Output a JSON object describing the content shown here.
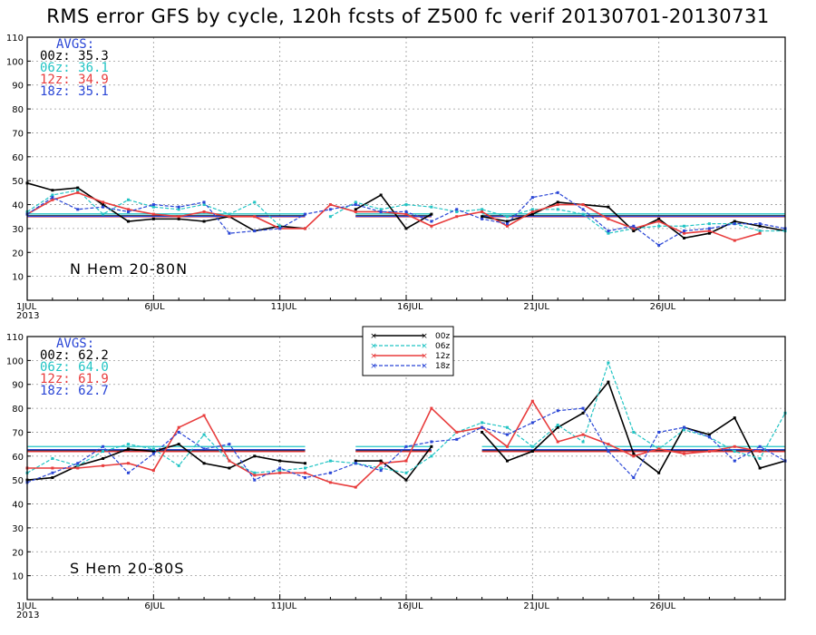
{
  "title": "RMS error GFS by cycle, 120h fcsts of Z500  fc verif 20130701-20130731",
  "colors": {
    "00z": "#000000",
    "06z": "#22c4c4",
    "12z": "#e83c3c",
    "18z": "#2a46d6",
    "avgs_header": "#2a46d6"
  },
  "legend": [
    "00z",
    "06z",
    "12z",
    "18z"
  ],
  "chart_data": [
    {
      "type": "line",
      "region_label": "N Hem 20-80N",
      "x_tick_labels": [
        "1JUL\n2013",
        "6JUL",
        "11JUL",
        "16JUL",
        "21JUL",
        "26JUL"
      ],
      "x_tick_days": [
        1,
        6,
        11,
        16,
        21,
        26
      ],
      "xlim": [
        1,
        31
      ],
      "ylim": [
        0,
        110
      ],
      "y_ticks": [
        10,
        20,
        30,
        40,
        50,
        60,
        70,
        80,
        90,
        100,
        110
      ],
      "grid": true,
      "avgs_header": "AVGS:",
      "avgs": [
        {
          "cycle": "00z",
          "text": "00z: 35.3",
          "value": 35.3
        },
        {
          "cycle": "06z",
          "text": "06z: 36.1",
          "value": 36.1
        },
        {
          "cycle": "12z",
          "text": "12z: 34.9",
          "value": 34.9
        },
        {
          "cycle": "18z",
          "text": "18z: 35.1",
          "value": 35.1
        }
      ],
      "avg_line_segments": [
        [
          1,
          12
        ],
        [
          14,
          17
        ],
        [
          19,
          31
        ]
      ],
      "series": [
        {
          "cycle": "00z",
          "x": [
            1,
            2,
            3,
            4,
            5,
            6,
            7,
            8,
            9,
            10,
            11,
            12,
            null,
            14,
            15,
            16,
            17,
            null,
            19,
            20,
            21,
            22,
            23,
            24,
            25,
            26,
            27,
            28,
            29,
            30,
            31
          ],
          "y": [
            49,
            46,
            47,
            40,
            33,
            34,
            34,
            33,
            35,
            29,
            31,
            30,
            null,
            38,
            44,
            30,
            36,
            null,
            35,
            33,
            36,
            41,
            40,
            39,
            29,
            34,
            26,
            28,
            33,
            31,
            29
          ]
        },
        {
          "cycle": "06z",
          "x": [
            1,
            2,
            3,
            4,
            5,
            6,
            7,
            8,
            9,
            10,
            11,
            null,
            13,
            14,
            15,
            16,
            17,
            18,
            19,
            20,
            21,
            22,
            23,
            24,
            25,
            26,
            27,
            28,
            29,
            30,
            31
          ],
          "y": [
            37,
            44,
            46,
            36,
            42,
            39,
            38,
            40,
            36,
            41,
            31,
            null,
            35,
            41,
            38,
            40,
            39,
            37,
            38,
            35,
            38,
            38,
            36,
            28,
            30,
            31,
            31,
            32,
            32,
            29,
            29
          ]
        },
        {
          "cycle": "12z",
          "x": [
            1,
            2,
            3,
            4,
            5,
            6,
            7,
            8,
            9,
            10,
            11,
            12,
            13,
            14,
            15,
            16,
            17,
            18,
            19,
            20,
            21,
            22,
            23,
            24,
            25,
            26,
            27,
            28,
            29,
            30
          ],
          "y": [
            36,
            42,
            45,
            41,
            38,
            36,
            35,
            37,
            35,
            35,
            30,
            30,
            40,
            37,
            37,
            36,
            31,
            35,
            37,
            31,
            37,
            40,
            40,
            34,
            30,
            33,
            28,
            29,
            25,
            28
          ]
        },
        {
          "cycle": "18z",
          "x": [
            1,
            2,
            3,
            4,
            5,
            6,
            7,
            8,
            9,
            10,
            11,
            12,
            13,
            14,
            15,
            16,
            17,
            18,
            19,
            20,
            21,
            22,
            23,
            24,
            25,
            26,
            27,
            28,
            29,
            30,
            31
          ],
          "y": [
            36,
            43,
            38,
            39,
            37,
            40,
            39,
            41,
            28,
            29,
            30,
            36,
            38,
            40,
            37,
            37,
            33,
            38,
            34,
            32,
            43,
            45,
            38,
            29,
            31,
            23,
            29,
            30,
            32,
            32,
            30
          ]
        }
      ]
    },
    {
      "type": "line",
      "region_label": "S Hem 20-80S",
      "x_tick_labels": [
        "1JUL\n2013",
        "6JUL",
        "11JUL",
        "16JUL",
        "21JUL",
        "26JUL"
      ],
      "x_tick_days": [
        1,
        6,
        11,
        16,
        21,
        26
      ],
      "xlim": [
        1,
        31
      ],
      "ylim": [
        0,
        110
      ],
      "y_ticks": [
        10,
        20,
        30,
        40,
        50,
        60,
        70,
        80,
        90,
        100,
        110
      ],
      "grid": true,
      "avgs_header": "AVGS:",
      "avgs": [
        {
          "cycle": "00z",
          "text": "00z: 62.2",
          "value": 62.2
        },
        {
          "cycle": "06z",
          "text": "06z: 64.0",
          "value": 64.0
        },
        {
          "cycle": "12z",
          "text": "12z: 61.9",
          "value": 61.9
        },
        {
          "cycle": "18z",
          "text": "18z: 62.7",
          "value": 62.7
        }
      ],
      "avg_line_segments": [
        [
          1,
          12
        ],
        [
          14,
          17
        ],
        [
          19,
          31
        ]
      ],
      "series": [
        {
          "cycle": "00z",
          "x": [
            1,
            2,
            3,
            4,
            5,
            6,
            7,
            8,
            9,
            10,
            11,
            12,
            null,
            14,
            15,
            16,
            17,
            null,
            19,
            20,
            21,
            22,
            23,
            24,
            25,
            26,
            27,
            28,
            29,
            30,
            31
          ],
          "y": [
            50,
            51,
            56,
            59,
            63,
            62,
            65,
            57,
            55,
            60,
            58,
            57,
            null,
            58,
            58,
            50,
            64,
            null,
            70,
            58,
            62,
            72,
            78,
            91,
            61,
            53,
            72,
            69,
            76,
            55,
            58
          ]
        },
        {
          "cycle": "06z",
          "x": [
            1,
            2,
            3,
            4,
            5,
            6,
            7,
            8,
            9,
            10,
            11,
            12,
            13,
            14,
            15,
            16,
            17,
            18,
            19,
            20,
            21,
            22,
            23,
            24,
            25,
            26,
            27,
            28,
            29,
            30,
            31
          ],
          "y": [
            53,
            59,
            56,
            62,
            65,
            63,
            56,
            69,
            58,
            53,
            54,
            55,
            58,
            57,
            55,
            53,
            60,
            70,
            74,
            72,
            64,
            73,
            66,
            99,
            70,
            63,
            71,
            68,
            62,
            59,
            78
          ]
        },
        {
          "cycle": "12z",
          "x": [
            1,
            2,
            3,
            4,
            5,
            6,
            7,
            8,
            9,
            10,
            11,
            12,
            13,
            14,
            15,
            16,
            17,
            18,
            19,
            20,
            21,
            22,
            23,
            24,
            25,
            26,
            27,
            28,
            29,
            30
          ],
          "y": [
            55,
            55,
            55,
            56,
            57,
            54,
            72,
            77,
            58,
            52,
            53,
            53,
            49,
            47,
            57,
            58,
            80,
            70,
            72,
            64,
            83,
            66,
            69,
            65,
            60,
            63,
            61,
            62,
            64,
            62
          ]
        },
        {
          "cycle": "18z",
          "x": [
            1,
            2,
            3,
            4,
            5,
            6,
            7,
            8,
            9,
            10,
            11,
            12,
            13,
            14,
            15,
            16,
            17,
            18,
            19,
            20,
            21,
            22,
            23,
            24,
            25,
            26,
            27,
            28,
            29,
            30,
            31
          ],
          "y": [
            49,
            53,
            57,
            64,
            53,
            61,
            70,
            63,
            65,
            50,
            55,
            51,
            53,
            57,
            54,
            64,
            66,
            67,
            72,
            69,
            74,
            79,
            80,
            62,
            51,
            70,
            72,
            68,
            58,
            64,
            58
          ]
        }
      ]
    }
  ]
}
